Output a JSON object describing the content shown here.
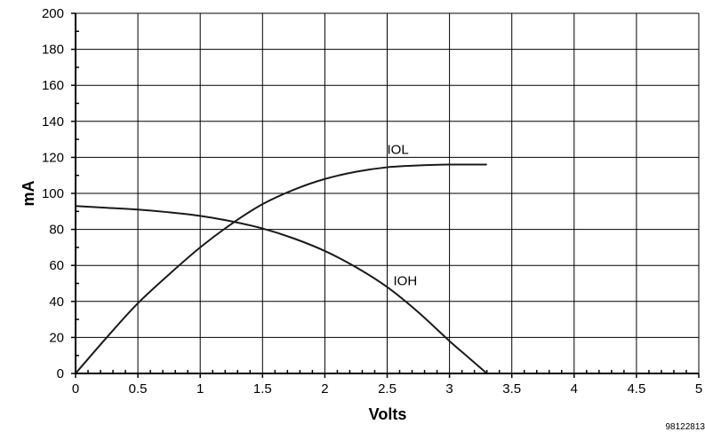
{
  "chart_data": {
    "type": "line",
    "xlabel": "Volts",
    "ylabel": "mA",
    "xlim": [
      0,
      5
    ],
    "ylim": [
      0,
      200
    ],
    "x_ticks": [
      0,
      0.5,
      1,
      1.5,
      2,
      2.5,
      3,
      3.5,
      4,
      4.5,
      5
    ],
    "x_tick_labels": [
      "0",
      "0.5",
      "1",
      "1.5",
      "2",
      "2.5",
      "3",
      "3.5",
      "4",
      "4.5",
      "5"
    ],
    "y_ticks": [
      0,
      20,
      40,
      60,
      80,
      100,
      120,
      140,
      160,
      180,
      200
    ],
    "y_tick_labels": [
      "0",
      "20",
      "40",
      "60",
      "80",
      "100",
      "120",
      "140",
      "160",
      "180",
      "200"
    ],
    "grid": true,
    "series": [
      {
        "name": "IOL",
        "x": [
          0,
          0.25,
          0.5,
          0.75,
          1,
          1.25,
          1.5,
          1.75,
          2,
          2.25,
          2.5,
          2.75,
          3,
          3.3
        ],
        "y": [
          0,
          20,
          39,
          55,
          70,
          83,
          94,
          102,
          108,
          112,
          114.5,
          115.5,
          116,
          116
        ]
      },
      {
        "name": "IOH",
        "x": [
          0,
          0.25,
          0.5,
          0.75,
          1,
          1.25,
          1.5,
          1.75,
          2,
          2.25,
          2.5,
          2.75,
          3,
          3.15,
          3.3
        ],
        "y": [
          93,
          92,
          91,
          89.5,
          87.5,
          84.5,
          80.5,
          75,
          68,
          59,
          48,
          34,
          18,
          9,
          0
        ]
      }
    ],
    "figure_id": "98122813"
  }
}
